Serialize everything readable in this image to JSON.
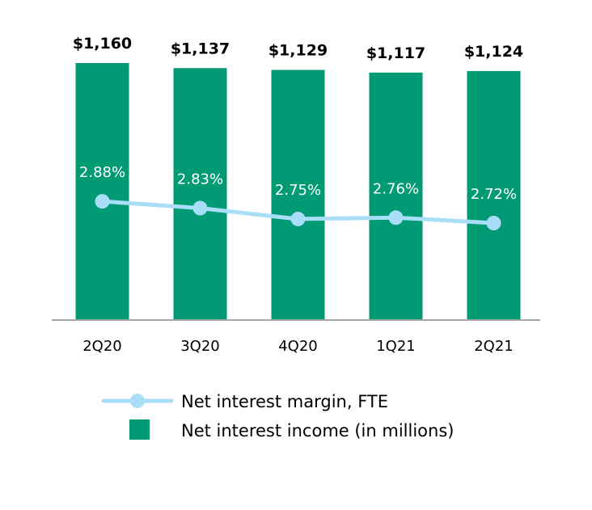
{
  "colors": {
    "bar": "#009A74",
    "line": "#A9DEF9",
    "axis": "#A6A6A6"
  },
  "legend": {
    "line_label": "Net interest margin, FTE",
    "bar_label": "Net interest income (in millions)"
  },
  "chart_data": {
    "type": "bar",
    "categories": [
      "2Q20",
      "3Q20",
      "4Q20",
      "1Q21",
      "2Q21"
    ],
    "series": [
      {
        "name": "Net interest income (in millions)",
        "type": "bar",
        "values": [
          1160,
          1137,
          1129,
          1117,
          1124
        ],
        "labels": [
          "$1,160",
          "$1,137",
          "$1,129",
          "$1,117",
          "$1,124"
        ]
      },
      {
        "name": "Net interest margin, FTE",
        "type": "line",
        "values": [
          2.88,
          2.83,
          2.75,
          2.76,
          2.72
        ],
        "labels": [
          "2.88%",
          "2.83%",
          "2.75%",
          "2.76%",
          "2.72%"
        ]
      }
    ],
    "grid": false,
    "legend_position": "bottom"
  }
}
